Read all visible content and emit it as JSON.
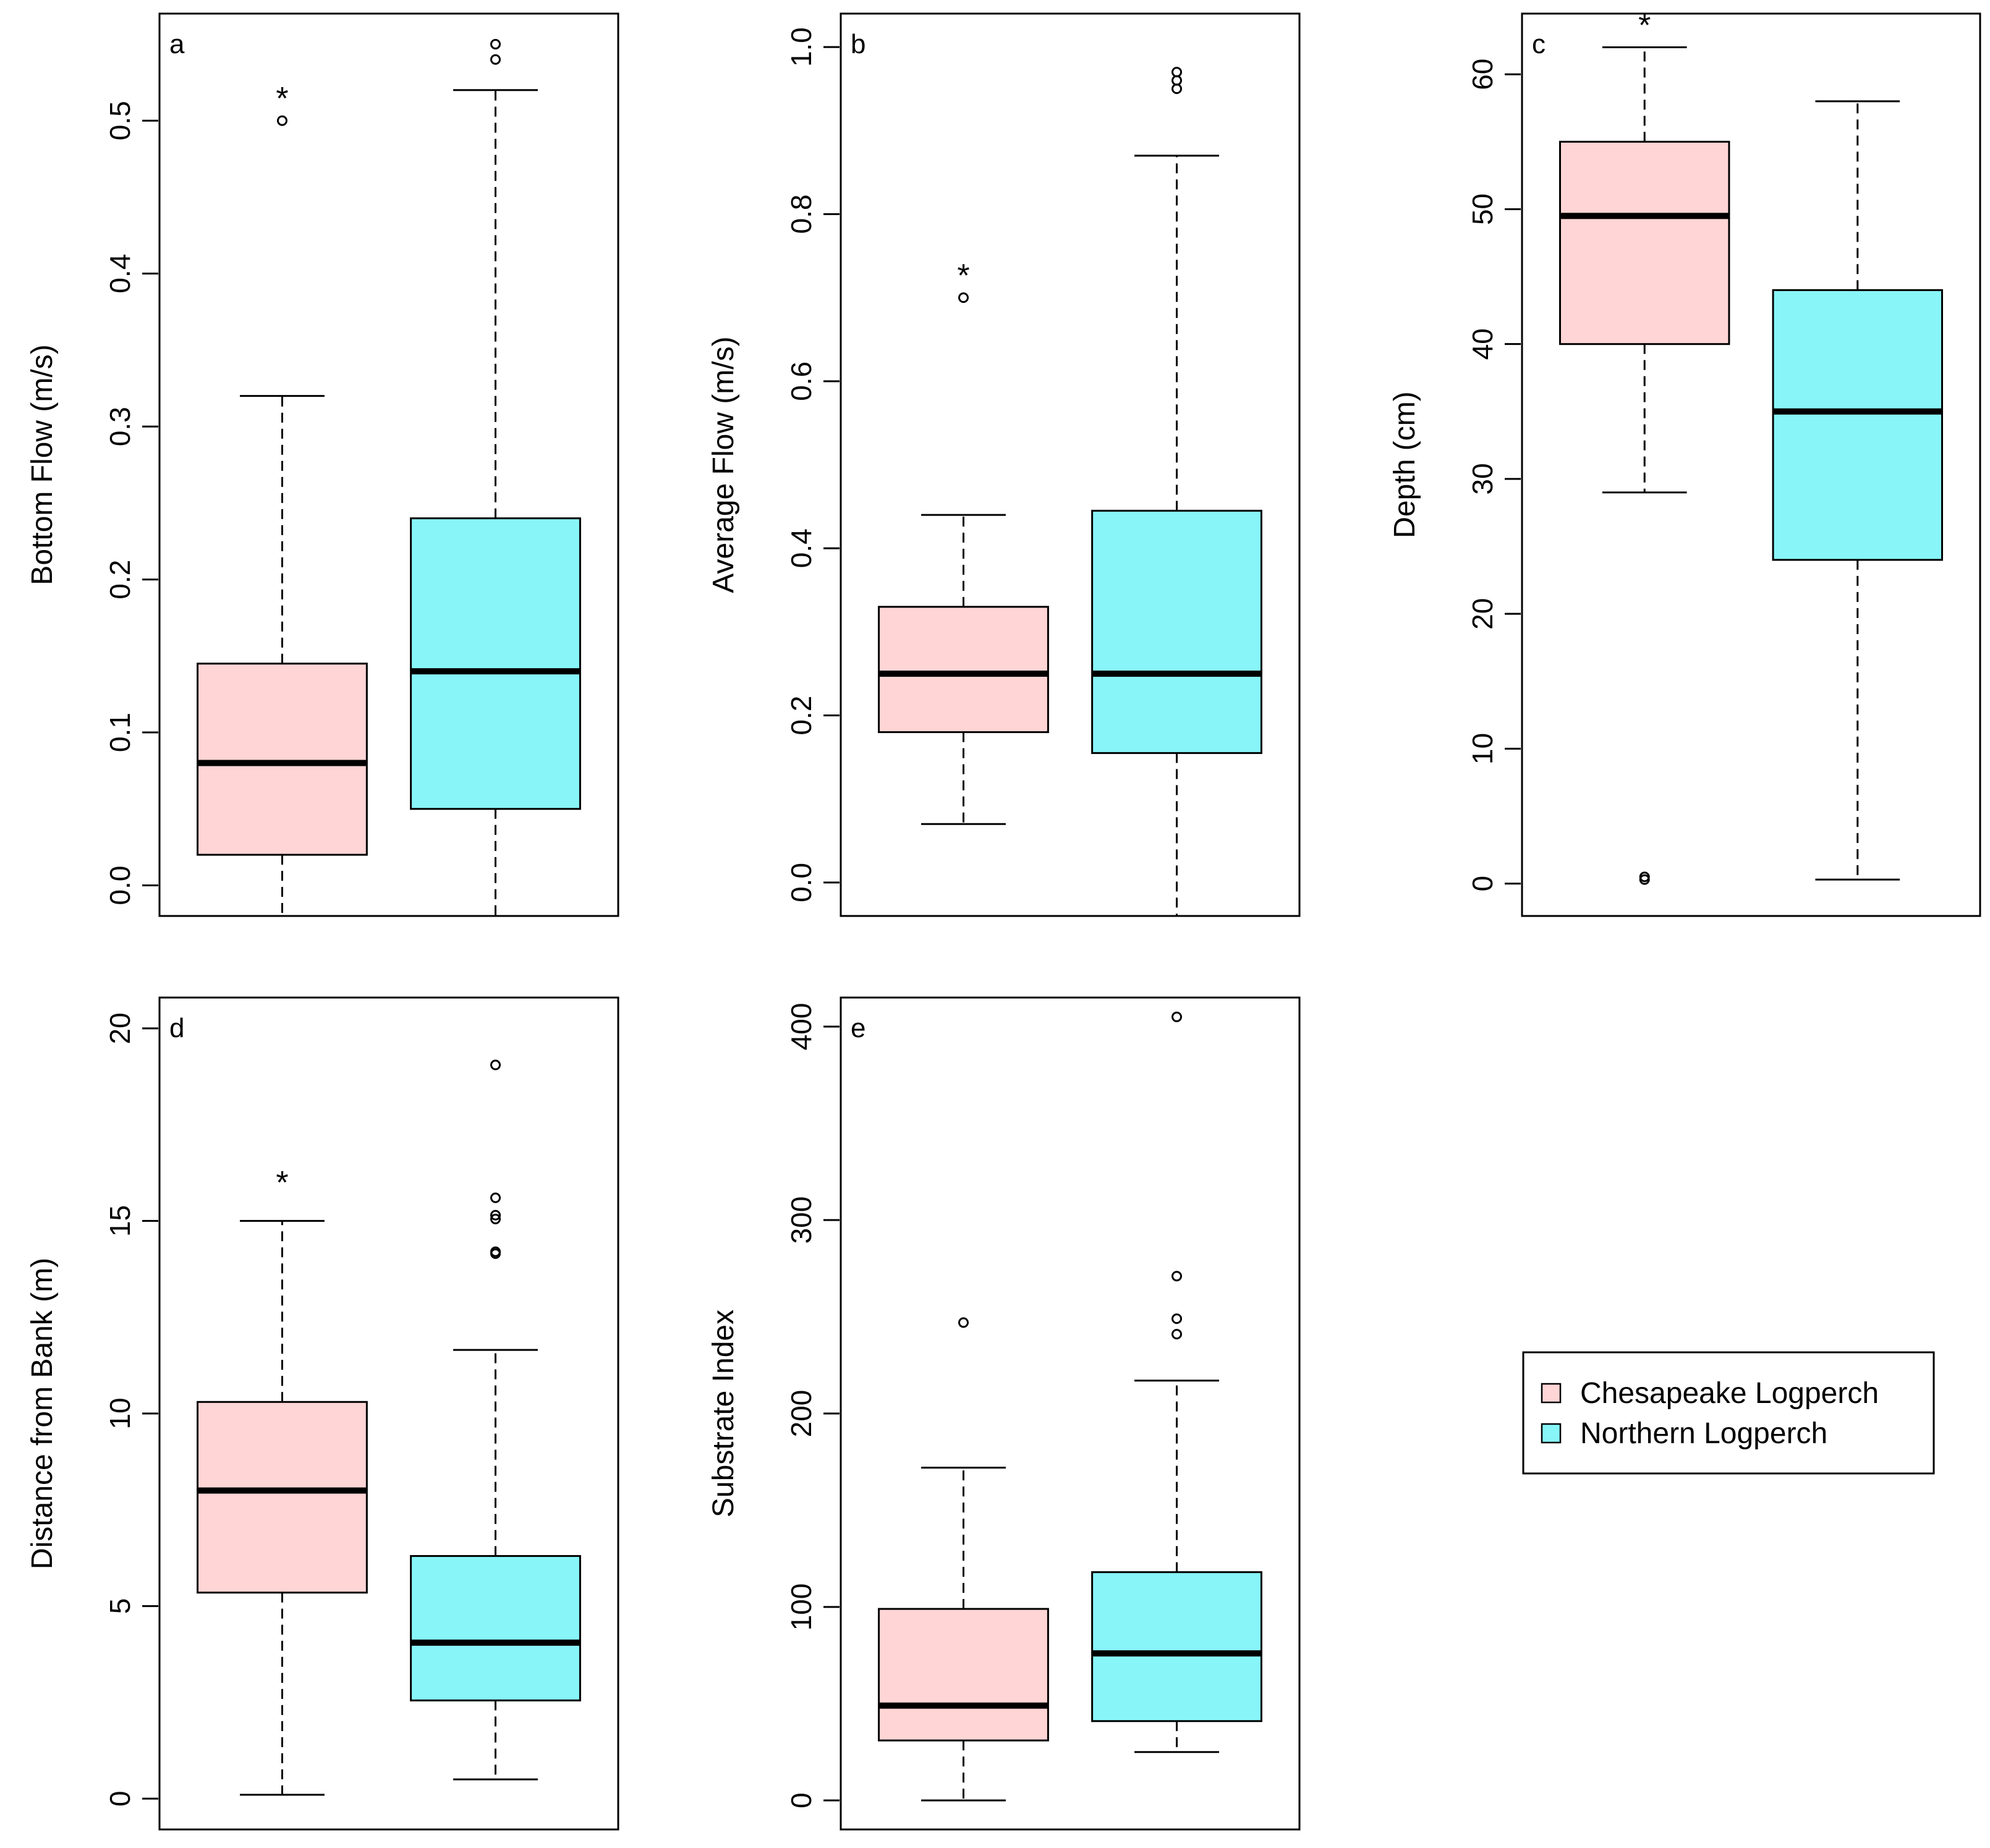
{
  "colors": {
    "chesapeake": "#FFD5D5",
    "northern": "#88F5F8",
    "stroke": "#000000"
  },
  "legend": {
    "position": "bottom-right",
    "entries": [
      "Chesapeake Logperch",
      "Northern Logperch"
    ]
  },
  "chart_data": [
    {
      "type": "box",
      "panel": "a",
      "title": "",
      "xlabel": "",
      "ylabel": "Bottom Flow (m/s)",
      "ylim": [
        -0.02,
        0.57
      ],
      "yticks": [
        0.0,
        0.1,
        0.2,
        0.3,
        0.4,
        0.5
      ],
      "ytick_labels": [
        "0.0",
        "0.1",
        "0.2",
        "0.3",
        "0.4",
        "0.5"
      ],
      "series": [
        {
          "name": "Chesapeake Logperch",
          "whisker_low": -0.02,
          "q1": 0.02,
          "median": 0.08,
          "q3": 0.145,
          "whisker_high": 0.32,
          "outliers": [
            0.5
          ],
          "star": true
        },
        {
          "name": "Northern Logperch",
          "whisker_low": -0.02,
          "q1": 0.05,
          "median": 0.14,
          "q3": 0.24,
          "whisker_high": 0.52,
          "outliers": [
            0.54,
            0.55
          ],
          "star": false
        }
      ]
    },
    {
      "type": "box",
      "panel": "b",
      "title": "",
      "xlabel": "",
      "ylabel": "Average Flow (m/s)",
      "ylim": [
        -0.04,
        1.04
      ],
      "yticks": [
        0.0,
        0.2,
        0.4,
        0.6,
        0.8,
        1.0
      ],
      "ytick_labels": [
        "0.0",
        "0.2",
        "0.4",
        "0.6",
        "0.8",
        "1.0"
      ],
      "series": [
        {
          "name": "Chesapeake Logperch",
          "whisker_low": 0.07,
          "q1": 0.18,
          "median": 0.25,
          "q3": 0.33,
          "whisker_high": 0.44,
          "outliers": [
            0.7
          ],
          "star": true
        },
        {
          "name": "Northern Logperch",
          "whisker_low": -0.04,
          "q1": 0.155,
          "median": 0.25,
          "q3": 0.445,
          "whisker_high": 0.87,
          "outliers": [
            0.95,
            0.96,
            0.97
          ],
          "star": false
        }
      ]
    },
    {
      "type": "box",
      "panel": "c",
      "title": "",
      "xlabel": "",
      "ylabel": "Depth (cm)",
      "ylim": [
        -2.4,
        64.5
      ],
      "yticks": [
        0,
        10,
        20,
        30,
        40,
        50,
        60
      ],
      "ytick_labels": [
        "0",
        "10",
        "20",
        "30",
        "40",
        "50",
        "60"
      ],
      "series": [
        {
          "name": "Chesapeake Logperch",
          "whisker_low": 29,
          "q1": 40,
          "median": 49.5,
          "q3": 55,
          "whisker_high": 62,
          "outliers": [
            0.3,
            0.5
          ],
          "star": true
        },
        {
          "name": "Northern Logperch",
          "whisker_low": 0.3,
          "q1": 24,
          "median": 35,
          "q3": 44,
          "whisker_high": 58,
          "outliers": [],
          "star": false
        }
      ]
    },
    {
      "type": "box",
      "panel": "d",
      "title": "",
      "xlabel": "",
      "ylabel": "Distance from Bank (m)",
      "ylim": [
        -0.8,
        20.8
      ],
      "yticks": [
        0,
        5,
        10,
        15,
        20
      ],
      "ytick_labels": [
        "0",
        "5",
        "10",
        "15",
        "20"
      ],
      "series": [
        {
          "name": "Chesapeake Logperch",
          "whisker_low": 0.1,
          "q1": 5.35,
          "median": 8.0,
          "q3": 10.3,
          "whisker_high": 15.0,
          "outliers": [],
          "star": true,
          "star_value": 16.0
        },
        {
          "name": "Northern Logperch",
          "whisker_low": 0.5,
          "q1": 2.55,
          "median": 4.05,
          "q3": 6.3,
          "whisker_high": 11.65,
          "outliers": [
            14.15,
            14.2,
            15.05,
            15.15,
            15.6,
            19.05
          ],
          "star": false
        }
      ]
    },
    {
      "type": "box",
      "panel": "e",
      "title": "",
      "xlabel": "",
      "ylabel": "Substrate Index",
      "ylim": [
        -15,
        415
      ],
      "yticks": [
        0,
        100,
        200,
        300,
        400
      ],
      "ytick_labels": [
        "0",
        "100",
        "200",
        "300",
        "400"
      ],
      "series": [
        {
          "name": "Chesapeake Logperch",
          "whisker_low": 0,
          "q1": 31,
          "median": 49,
          "q3": 99,
          "whisker_high": 172,
          "outliers": [
            247
          ],
          "star": false
        },
        {
          "name": "Northern Logperch",
          "whisker_low": 25,
          "q1": 41,
          "median": 76,
          "q3": 118,
          "whisker_high": 217,
          "outliers": [
            241,
            249,
            271,
            405
          ],
          "star": false
        }
      ]
    }
  ]
}
